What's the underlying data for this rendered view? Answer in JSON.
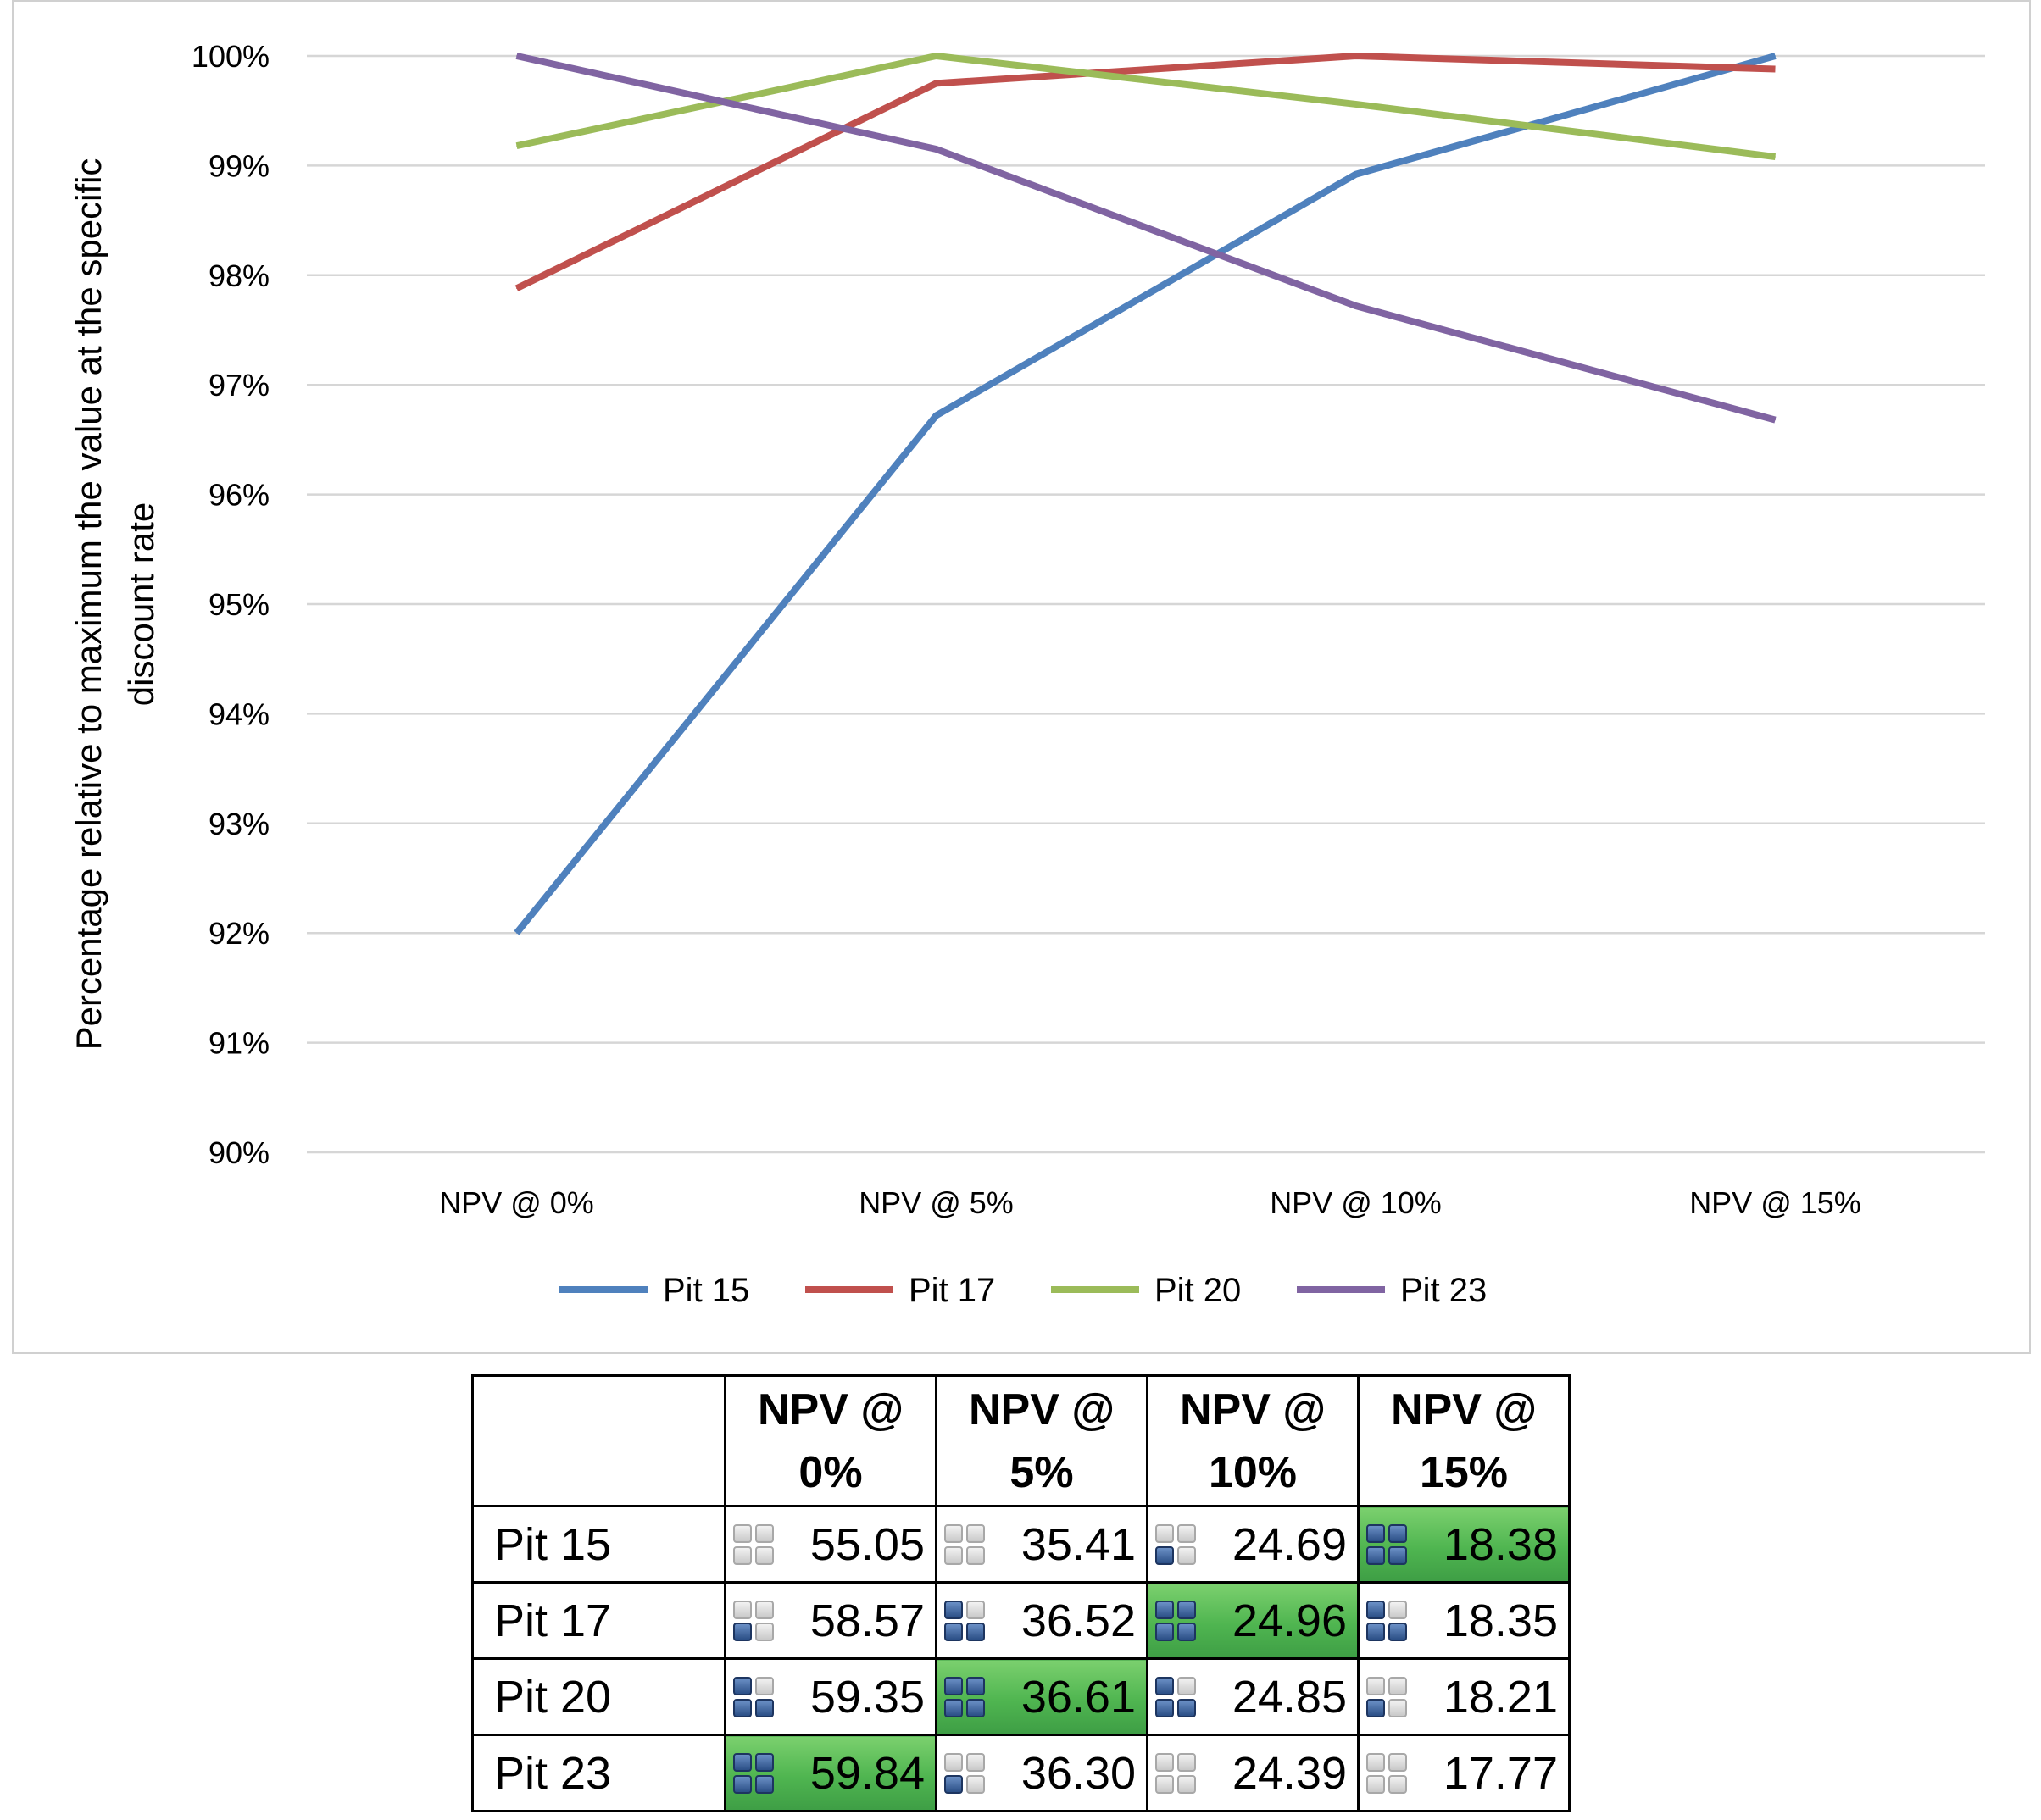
{
  "chart_data": {
    "type": "line",
    "categories": [
      "NPV @ 0%",
      "NPV @ 5%",
      "NPV @ 10%",
      "NPV @ 15%"
    ],
    "ylabel": "Percentage relative to maximum the value at the specific discount rate",
    "ylim": [
      90,
      100
    ],
    "yticks": [
      "90%",
      "91%",
      "92%",
      "93%",
      "94%",
      "95%",
      "96%",
      "97%",
      "98%",
      "99%",
      "100%"
    ],
    "grid": "horizontal",
    "legend_position": "bottom",
    "series": [
      {
        "name": "Pit 15",
        "color": "#4f81bd",
        "values": [
          92.0,
          96.72,
          98.92,
          100.0
        ]
      },
      {
        "name": "Pit 17",
        "color": "#c0504d",
        "values": [
          97.88,
          99.75,
          100.0,
          99.88
        ]
      },
      {
        "name": "Pit 20",
        "color": "#9bbb59",
        "values": [
          99.18,
          100.0,
          99.56,
          99.08
        ]
      },
      {
        "name": "Pit 23",
        "color": "#8064a2",
        "values": [
          100.0,
          99.15,
          97.72,
          96.68
        ]
      }
    ]
  },
  "table": {
    "headers": [
      "",
      "NPV @ 0%",
      "NPV @ 5%",
      "NPV @ 10%",
      "NPV @ 15%"
    ],
    "header_lines": [
      [
        "",
        ""
      ],
      [
        "NPV @",
        "0%"
      ],
      [
        "NPV @",
        "5%"
      ],
      [
        "NPV @",
        "10%"
      ],
      [
        "NPV @",
        "15%"
      ]
    ],
    "rows": [
      {
        "label": "Pit 15",
        "cells": [
          {
            "value": "55.05",
            "quadrants_filled": 0,
            "highlight": false
          },
          {
            "value": "35.41",
            "quadrants_filled": 0,
            "highlight": false
          },
          {
            "value": "24.69",
            "quadrants_filled": 1,
            "highlight": false
          },
          {
            "value": "18.38",
            "quadrants_filled": 4,
            "highlight": true
          }
        ]
      },
      {
        "label": "Pit 17",
        "cells": [
          {
            "value": "58.57",
            "quadrants_filled": 1,
            "highlight": false
          },
          {
            "value": "36.52",
            "quadrants_filled": 3,
            "highlight": false
          },
          {
            "value": "24.96",
            "quadrants_filled": 4,
            "highlight": true
          },
          {
            "value": "18.35",
            "quadrants_filled": 3,
            "highlight": false
          }
        ]
      },
      {
        "label": "Pit 20",
        "cells": [
          {
            "value": "59.35",
            "quadrants_filled": 3,
            "highlight": false
          },
          {
            "value": "36.61",
            "quadrants_filled": 4,
            "highlight": true
          },
          {
            "value": "24.85",
            "quadrants_filled": 3,
            "highlight": false
          },
          {
            "value": "18.21",
            "quadrants_filled": 1,
            "highlight": false
          }
        ]
      },
      {
        "label": "Pit 23",
        "cells": [
          {
            "value": "59.84",
            "quadrants_filled": 4,
            "highlight": true
          },
          {
            "value": "36.30",
            "quadrants_filled": 1,
            "highlight": false
          },
          {
            "value": "24.39",
            "quadrants_filled": 0,
            "highlight": false
          },
          {
            "value": "17.77",
            "quadrants_filled": 0,
            "highlight": false
          }
        ]
      }
    ]
  }
}
